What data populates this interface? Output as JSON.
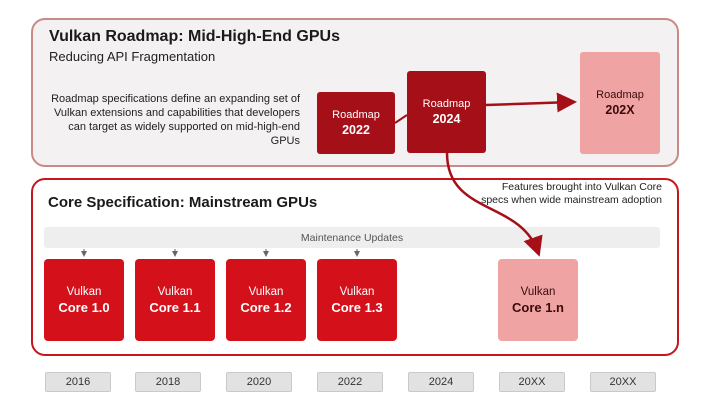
{
  "top": {
    "title": "Vulkan Roadmap: Mid-High-End GPUs",
    "subtitle": "Reducing API Fragmentation",
    "description": "Roadmap specifications define an expanding set of Vulkan extensions and capabilities that developers can target as widely supported on mid-high-end GPUs",
    "roadmaps": [
      {
        "line1": "Roadmap",
        "line2": "2022"
      },
      {
        "line1": "Roadmap",
        "line2": "2024"
      },
      {
        "line1": "Roadmap",
        "line2": "202X"
      }
    ]
  },
  "core": {
    "title": "Core Specification: Mainstream  GPUs",
    "features_note": "Features brought into Vulkan Core specs when wide mainstream adoption",
    "maintenance_label": "Maintenance Updates",
    "versions": [
      {
        "line1": "Vulkan",
        "line2": "Core 1.0"
      },
      {
        "line1": "Vulkan",
        "line2": "Core 1.1"
      },
      {
        "line1": "Vulkan",
        "line2": "Core 1.2"
      },
      {
        "line1": "Vulkan",
        "line2": "Core 1.3"
      },
      {
        "line1": "Vulkan",
        "line2": "Core 1.n"
      }
    ]
  },
  "timeline": [
    "2016",
    "2018",
    "2020",
    "2022",
    "2024",
    "20XX",
    "20XX"
  ],
  "colors": {
    "dark_red": "#a50f18",
    "core_red": "#d4111b",
    "light_pink": "#f0a3a3",
    "panel_border": "#c4161c"
  }
}
